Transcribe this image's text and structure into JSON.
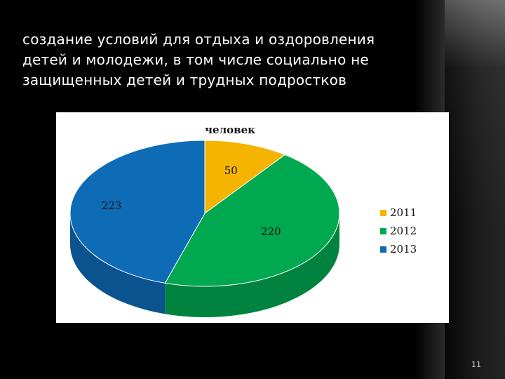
{
  "slide": {
    "title": "создание условий для отдыха и оздоровления\nдетей и молодежи, в том числе социально не\nзащищенных детей и трудных  подростков",
    "page_number": "11"
  },
  "chart_data": {
    "type": "pie",
    "title": "человек",
    "categories": [
      "2011",
      "2012",
      "2013"
    ],
    "values": [
      50,
      220,
      223
    ],
    "colors": [
      "#f4b400",
      "#00a84f",
      "#0e6bb6"
    ],
    "legend_position": "right",
    "style": "3d"
  }
}
